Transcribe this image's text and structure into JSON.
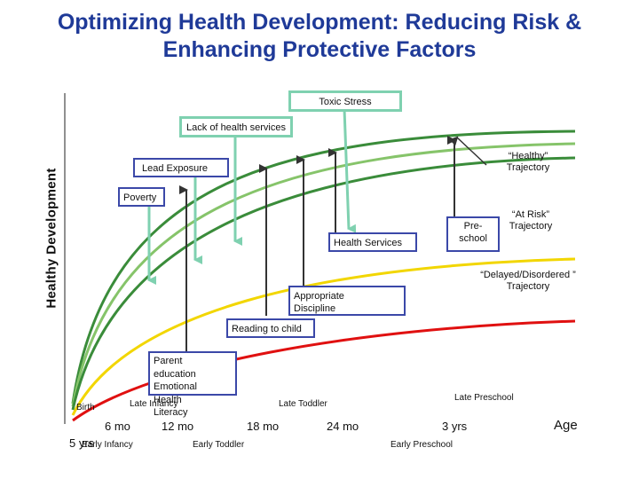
{
  "title": {
    "line1": "Optimizing Health Development: Reducing Risk &",
    "line2": "Enhancing Protective Factors"
  },
  "y_axis_label": "Healthy Development",
  "x_axis_label": "Age",
  "colors": {
    "title": "#1f3a98",
    "dark_green": "#3a8c3a",
    "light_green": "#86c46a",
    "yellow": "#f2d600",
    "red": "#e01010",
    "teal_box": "#7fd1b0",
    "blue_box": "#3b48a8",
    "arrow_dark": "#333333"
  },
  "risk_factors": {
    "toxic_stress": "Toxic Stress",
    "lack_health_services": "Lack of health services",
    "lead_exposure": "Lead Exposure",
    "poverty": "Poverty"
  },
  "protective_factors": {
    "health_services": "Health Services",
    "preschool_line1": "Pre-",
    "preschool_line2": "school",
    "appropriate_discipline_line1": "Appropriate",
    "appropriate_discipline_line2": "Discipline",
    "reading_to_child": "Reading to child",
    "parent_education": "Parent\neducation\nEmotional\nHealth\nLiteracy"
  },
  "trajectories": {
    "healthy": "“Healthy”\nTrajectory",
    "at_risk": "“At Risk”\nTrajectory",
    "delayed": "“Delayed/Disordered ”\nTrajectory"
  },
  "age_ticks": {
    "birth": "Birth",
    "six_mo": "6 mo",
    "twelve_mo": "12 mo",
    "eighteen_mo": "18 mo",
    "twentyfour_mo": "24 mo",
    "three_yrs": "3 yrs",
    "five_yrs": "5 yrs"
  },
  "stages": {
    "late_infancy": "Late Infancy",
    "late_toddler": "Late Toddler",
    "late_preschool": "Late Preschool",
    "early_infancy": "Early Infancy",
    "early_toddler": "Early Toddler",
    "early_preschool": "Early Preschool"
  }
}
